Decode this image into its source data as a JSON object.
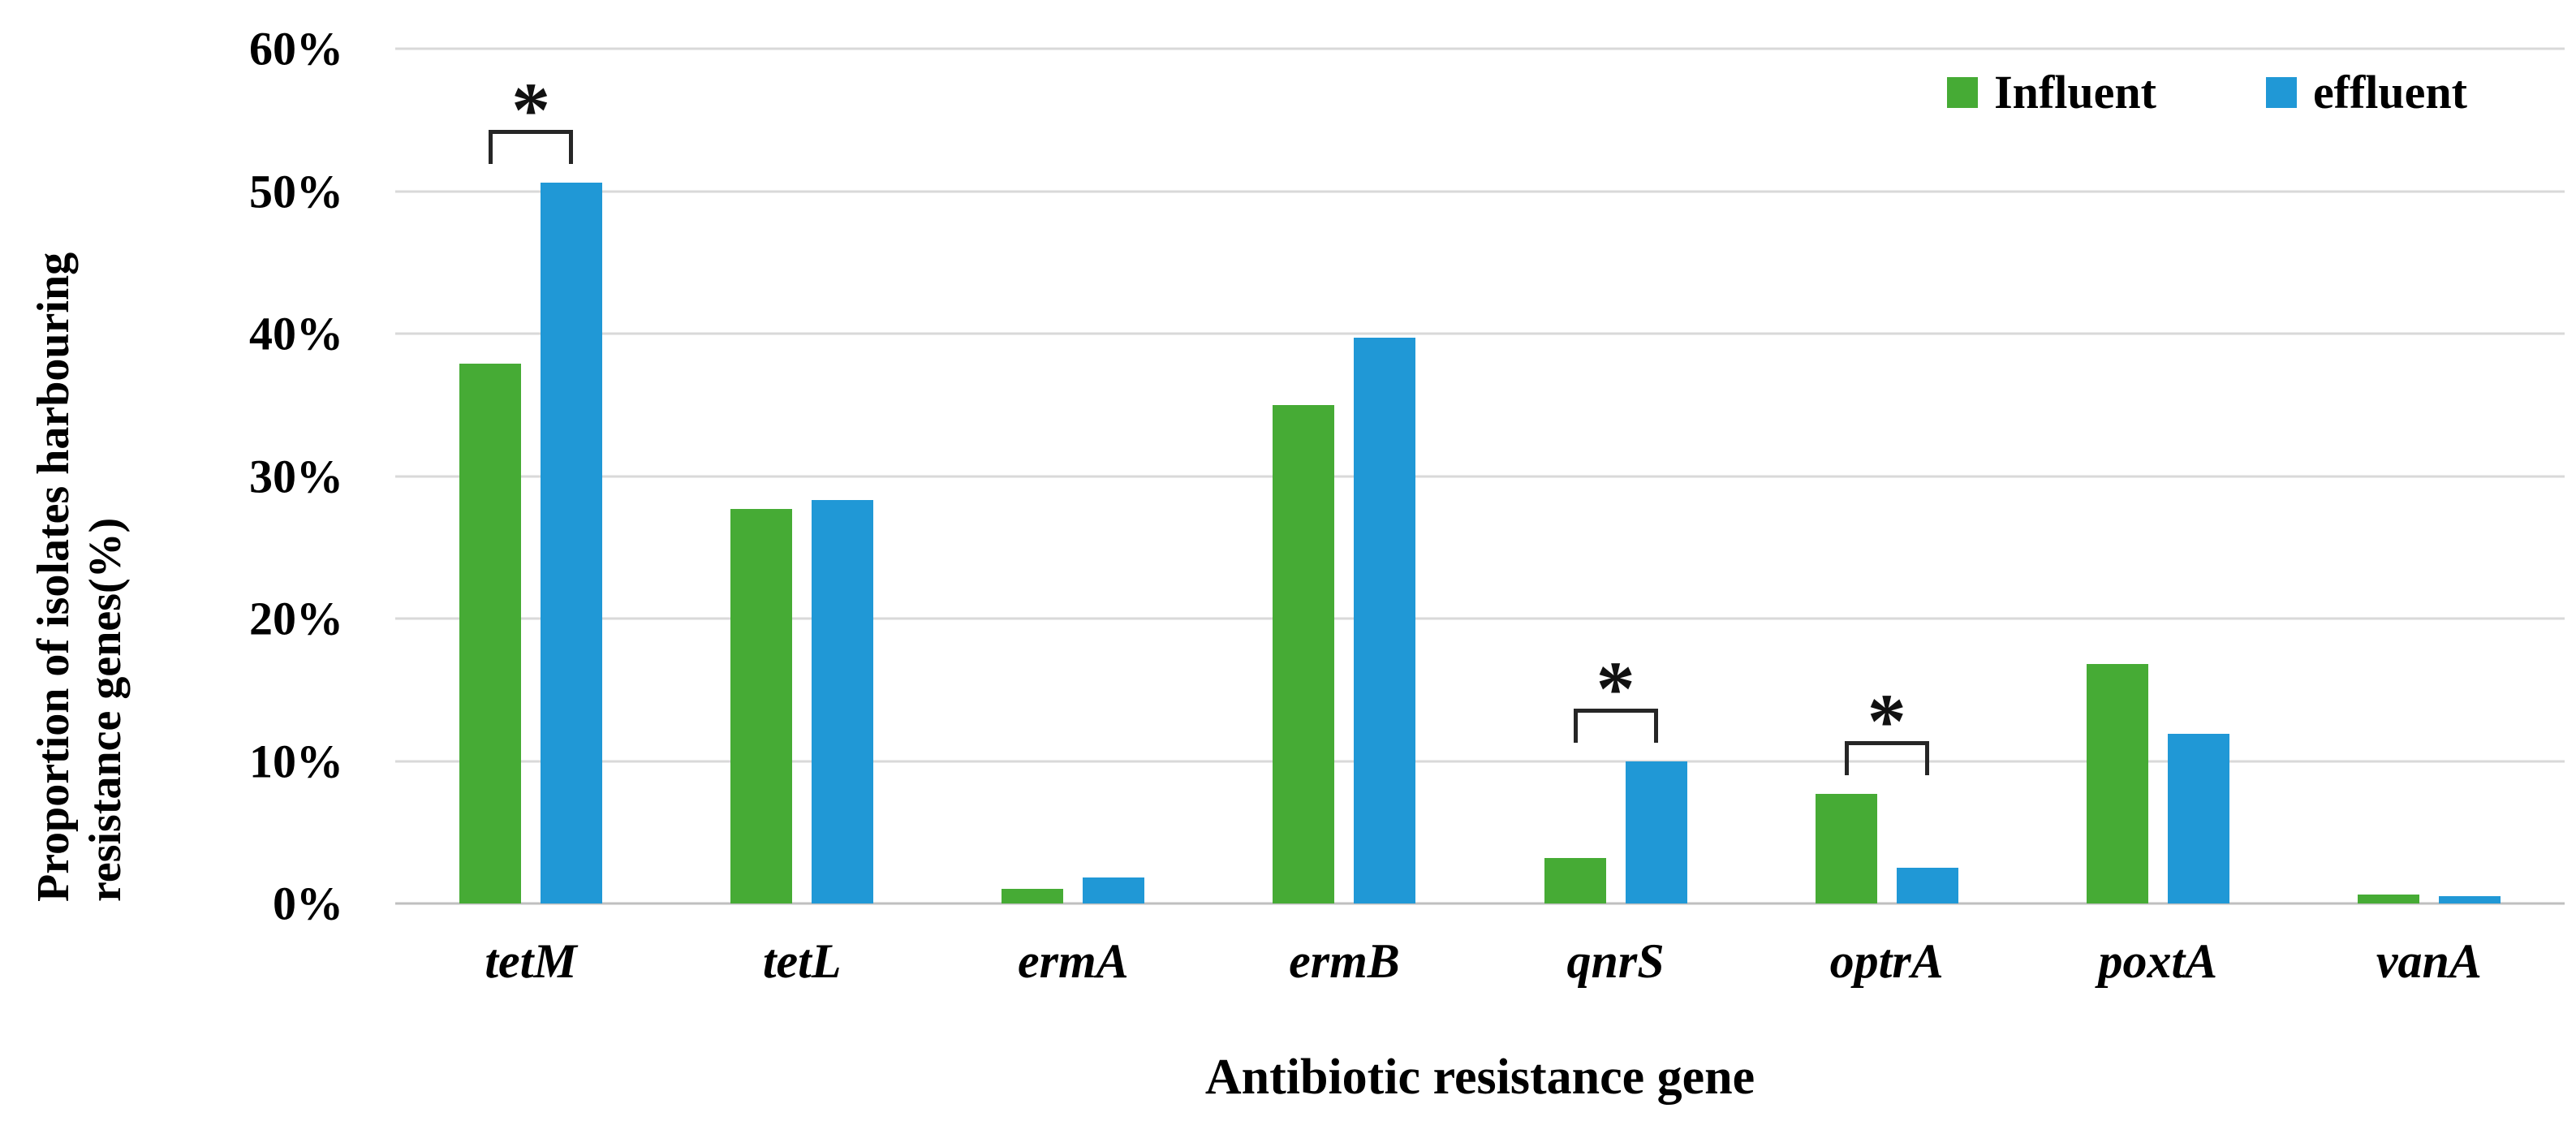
{
  "figure": {
    "y_axis_title_line1": "Proportion of isolates harbouring",
    "y_axis_title_line2": "resistance genes(%)",
    "x_axis_title": "Antibiotic resistance gene"
  },
  "legend": {
    "influent_label": "Influent",
    "effluent_label": "effluent"
  },
  "colors": {
    "influent": "#46AB35",
    "effluent": "#2098D6",
    "gridline": "#D9D9D9",
    "axis_line": "#BFBFBF",
    "bracket": "#262626",
    "text": "#000000"
  },
  "chart_data": {
    "type": "bar",
    "title": "",
    "categories": [
      "tetM",
      "tetL",
      "ermA",
      "ermB",
      "qnrS",
      "optrA",
      "poxtA",
      "vanA"
    ],
    "series": [
      {
        "name": "Influent",
        "color": "#46AB35",
        "values": [
          37.9,
          27.7,
          1.0,
          35.0,
          3.2,
          7.7,
          16.8,
          0.6
        ]
      },
      {
        "name": "effluent",
        "color": "#2098D6",
        "values": [
          50.6,
          28.3,
          1.8,
          39.7,
          10.0,
          2.5,
          11.9,
          0.5
        ]
      }
    ],
    "significance_marked": [
      "tetM",
      "qnrS",
      "optrA"
    ],
    "significance_symbol": "*",
    "xlabel": "Antibiotic resistance gene",
    "ylabel": "Proportion of isolates harbouring resistance genes(%)",
    "ylim": [
      0,
      60
    ],
    "y_tick_step": 10,
    "y_ticks": [
      "0%",
      "10%",
      "20%",
      "30%",
      "40%",
      "50%",
      "60%"
    ],
    "grid": true,
    "legend_position": "top-right"
  }
}
